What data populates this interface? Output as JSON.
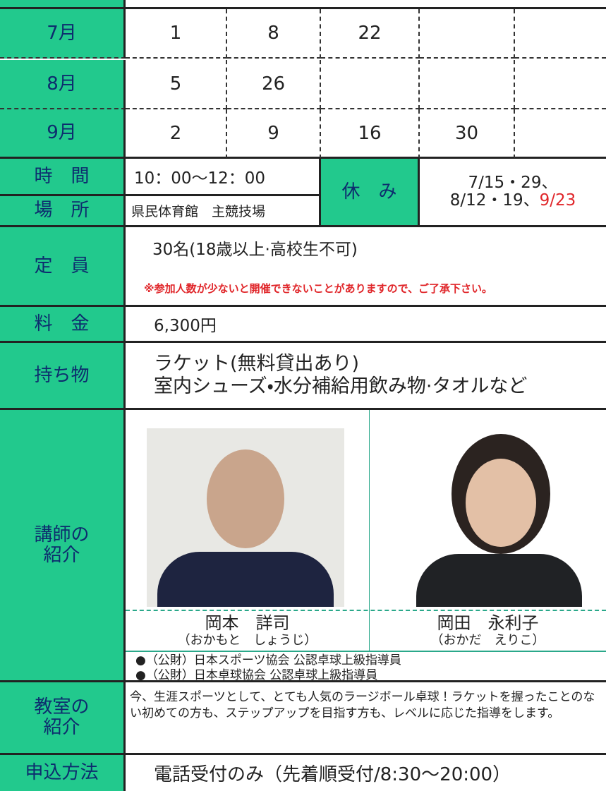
{
  "schedule": {
    "rows": [
      {
        "month": "7月",
        "days": [
          1,
          8,
          22
        ]
      },
      {
        "month": "8月",
        "days": [
          5,
          26
        ]
      },
      {
        "month": "9月",
        "days": [
          2,
          9,
          16,
          30
        ]
      }
    ]
  },
  "time": {
    "label": "時　間",
    "value": "10：00〜12：00"
  },
  "place": {
    "label": "場　所",
    "value": "県民体育館　主競技場"
  },
  "holiday": {
    "label": "休　み",
    "line1": "7/15・29、",
    "line2": "8/12・19、",
    "line2_red": "9/23"
  },
  "capacity": {
    "label": "定　員",
    "value": "30名(18歳以上·高校生不可)",
    "note": "※参加人数が少ないと開催できないことがありますので、ご了承下さい。"
  },
  "fee": {
    "label": "料　金",
    "value": "6,300円"
  },
  "belongings": {
    "label": "持ち物",
    "lines": [
      "ラケット(無料貸出あり)",
      "室内シューズ・水分補給用飲み物·タオルなど"
    ]
  },
  "instructors": {
    "label_lines": [
      "講師の",
      "紹介"
    ],
    "people": [
      {
        "name": "岡本　詳司",
        "reading": "（おかもと　しょうじ）"
      },
      {
        "name": "岡田　永利子",
        "reading": "（おかだ　えりこ）"
      }
    ],
    "qualifications": [
      "●（公財）日本スポーツ協会 公認卓球上級指導員",
      "●（公財）日本卓球協会 公認卓球上級指導員"
    ]
  },
  "classroom": {
    "label_lines": [
      "教室の",
      "紹介"
    ],
    "text": "今、生涯スポーツとして、とても人気のラージボール卓球！ラケットを握ったことのない初めての方も、ステップアップを目指す方も、レベルに応じた指導をします。"
  },
  "application": {
    "label": "申込方法",
    "value": "電話受付のみ（先着順受付/8:30〜20:00）"
  }
}
